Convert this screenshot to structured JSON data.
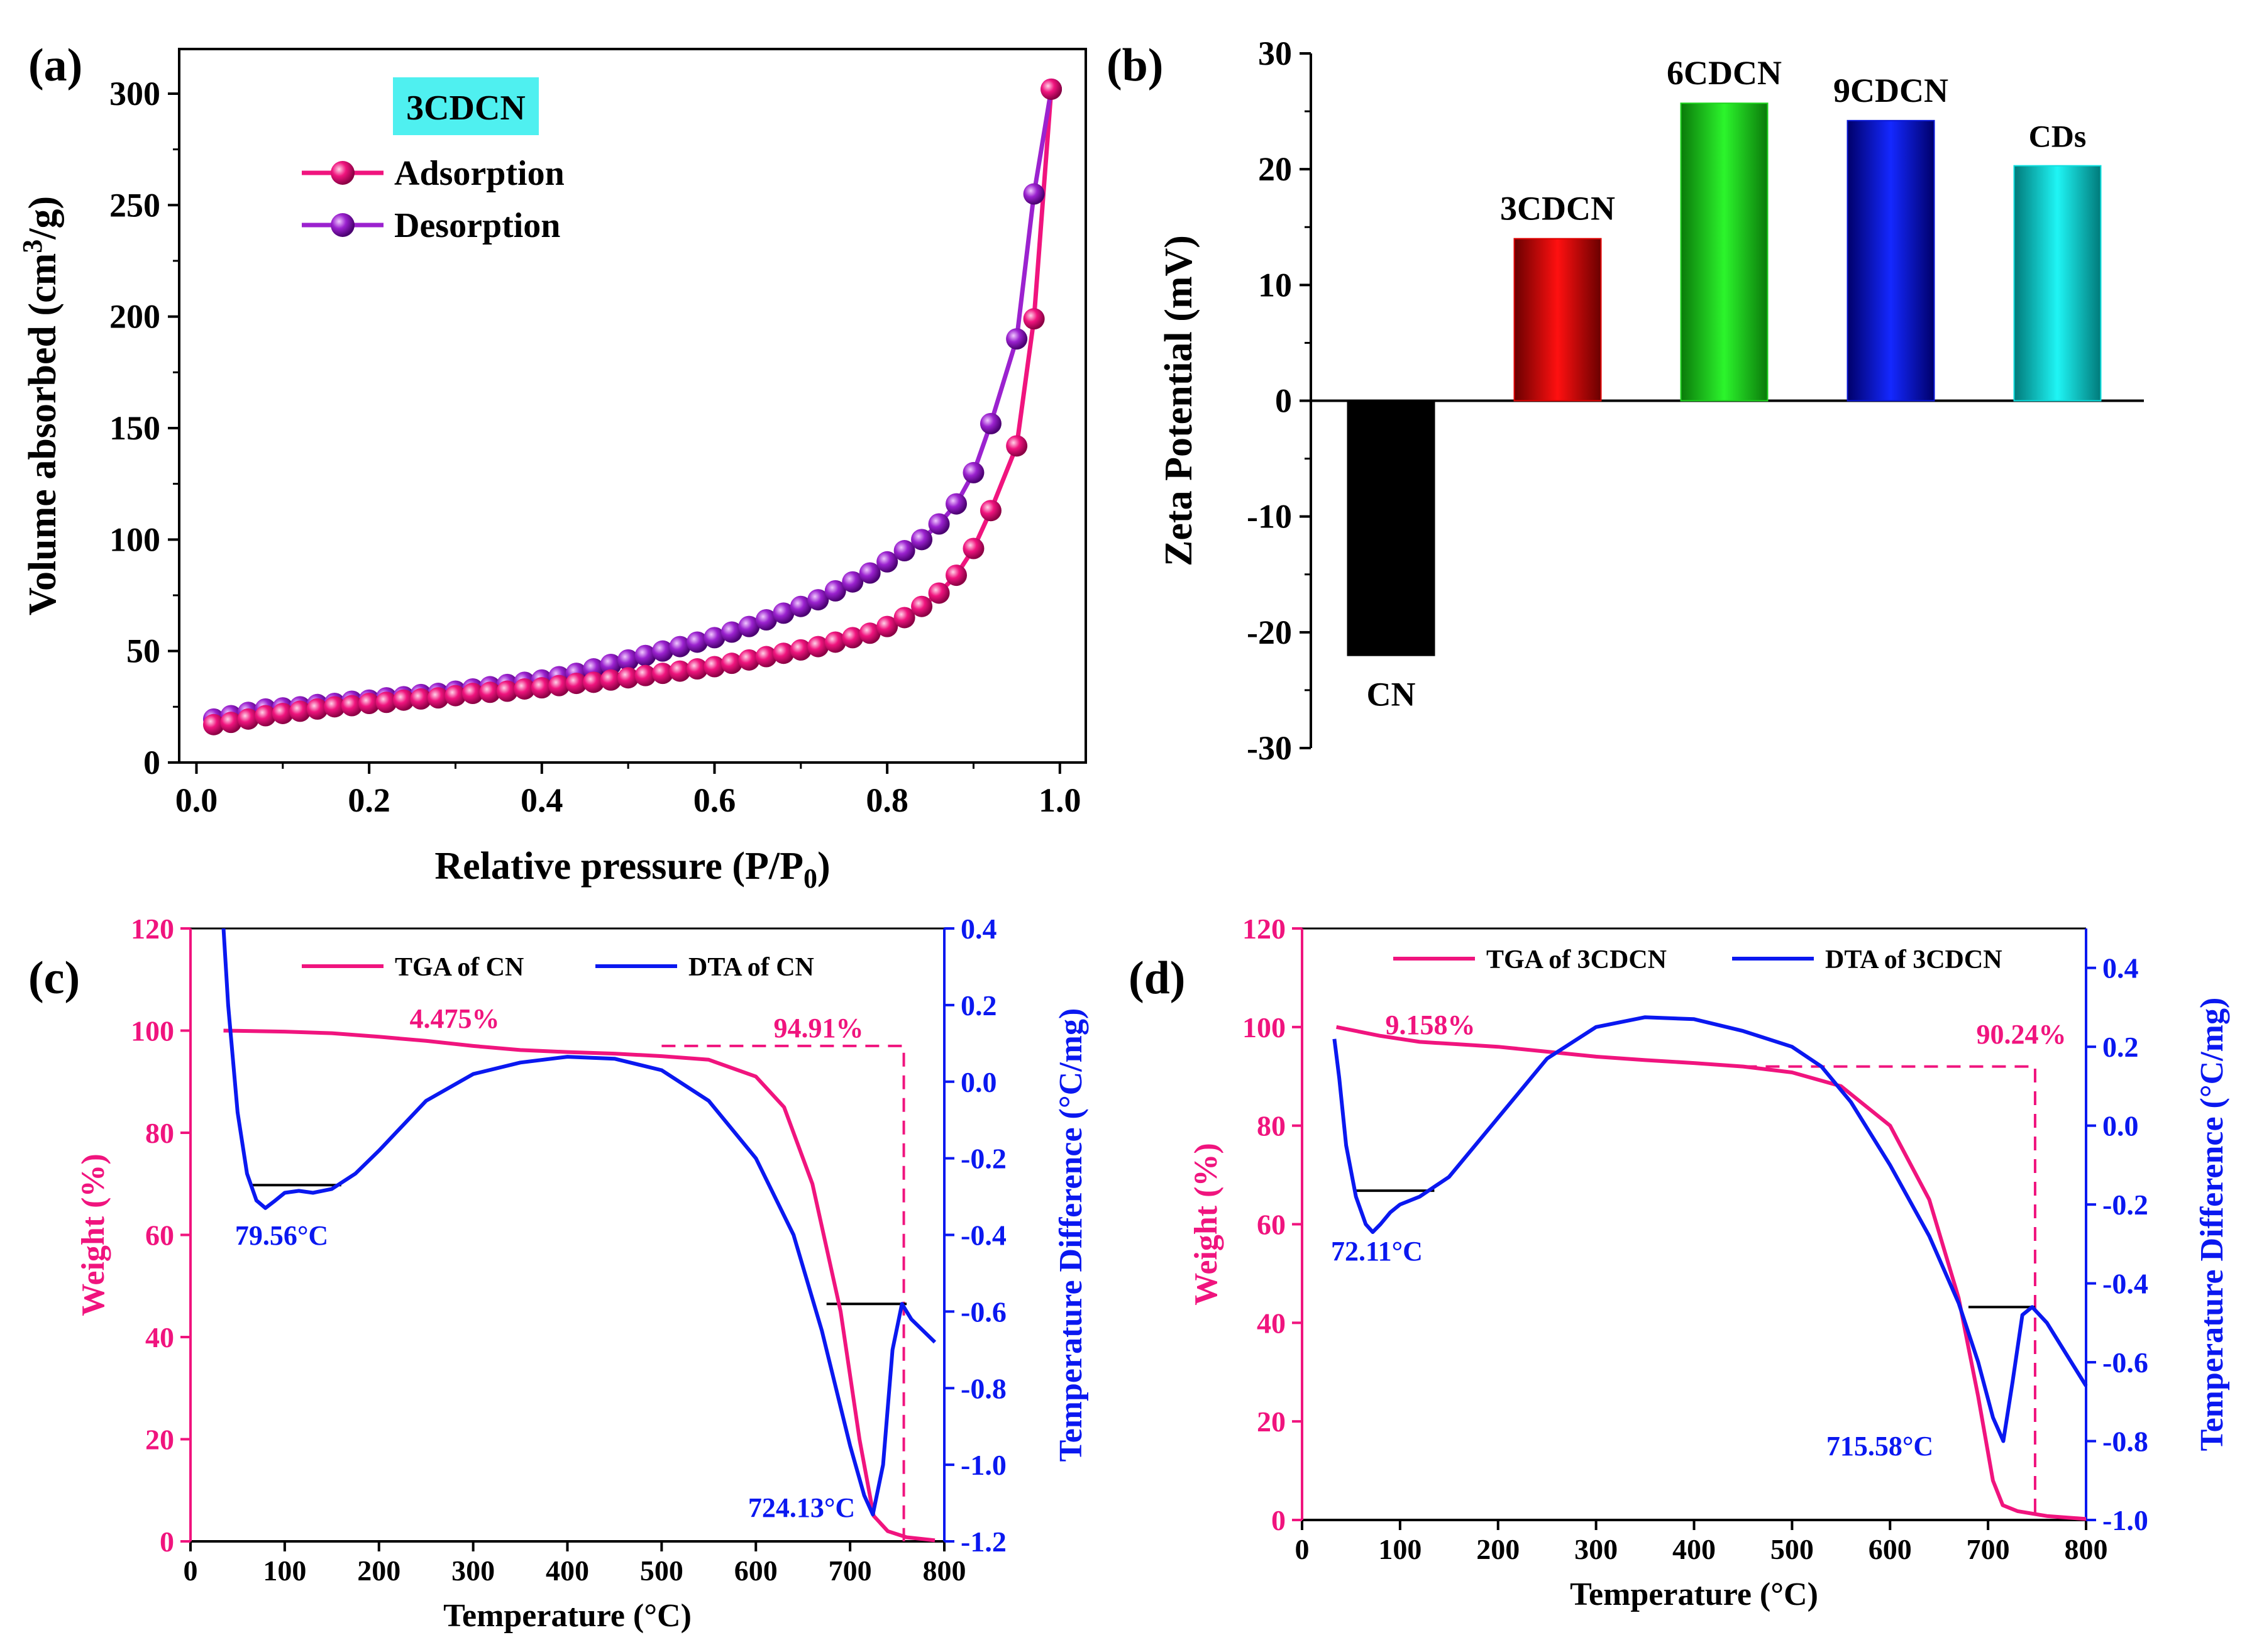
{
  "chart_data": [
    {
      "panel": "(a)",
      "type": "line",
      "title": "",
      "label_box": "3CDCN",
      "xlabel": "Relative pressure (P/P",
      "xlabel_sub": "0",
      "xlabel_tail": ")",
      "ylabel": "Volume absorbed (cm",
      "ylabel_sup": "3",
      "ylabel_tail": "/g)",
      "xlim": [
        -0.02,
        1.03
      ],
      "ylim": [
        0,
        320
      ],
      "xticks": [
        "0.0",
        "0.2",
        "0.4",
        "0.6",
        "0.8",
        "1.0"
      ],
      "yticks": [
        "0",
        "50",
        "100",
        "150",
        "200",
        "250",
        "300"
      ],
      "legend": "top-left",
      "series": [
        {
          "name": "Adsorption",
          "color": "#f0147e",
          "x": [
            0.02,
            0.04,
            0.06,
            0.08,
            0.1,
            0.12,
            0.14,
            0.16,
            0.18,
            0.2,
            0.22,
            0.24,
            0.26,
            0.28,
            0.3,
            0.32,
            0.34,
            0.36,
            0.38,
            0.4,
            0.42,
            0.44,
            0.46,
            0.48,
            0.5,
            0.52,
            0.54,
            0.56,
            0.58,
            0.6,
            0.62,
            0.64,
            0.66,
            0.68,
            0.7,
            0.72,
            0.74,
            0.76,
            0.78,
            0.8,
            0.82,
            0.84,
            0.86,
            0.88,
            0.9,
            0.92,
            0.95,
            0.97,
            0.99
          ],
          "y": [
            17,
            18,
            19.5,
            21,
            22,
            23,
            24,
            25,
            25.5,
            26.5,
            27,
            28,
            28.5,
            29,
            30,
            31,
            31.5,
            32,
            33,
            33.5,
            34.5,
            35.5,
            36,
            37,
            38,
            39,
            40,
            41,
            42,
            43,
            44.5,
            46,
            47.5,
            49,
            50.5,
            52,
            54,
            56,
            58,
            61,
            65,
            70,
            76,
            84,
            96,
            113,
            142,
            199,
            302
          ]
        },
        {
          "name": "Desorption",
          "color": "#9b22cf",
          "x": [
            0.02,
            0.04,
            0.06,
            0.08,
            0.1,
            0.12,
            0.14,
            0.16,
            0.18,
            0.2,
            0.22,
            0.24,
            0.26,
            0.28,
            0.3,
            0.32,
            0.34,
            0.36,
            0.38,
            0.4,
            0.42,
            0.44,
            0.46,
            0.48,
            0.5,
            0.52,
            0.54,
            0.56,
            0.58,
            0.6,
            0.62,
            0.64,
            0.66,
            0.68,
            0.7,
            0.72,
            0.74,
            0.76,
            0.78,
            0.8,
            0.82,
            0.84,
            0.86,
            0.88,
            0.9,
            0.92,
            0.95,
            0.97,
            0.99
          ],
          "y": [
            19.5,
            21,
            22.5,
            24,
            24.5,
            25,
            26,
            26.5,
            27.5,
            28,
            29,
            29.5,
            30.5,
            31,
            32,
            33,
            34,
            35,
            36,
            37,
            38.5,
            40,
            42,
            44,
            46,
            48,
            50,
            52,
            54,
            56,
            58.5,
            61,
            64,
            67,
            70,
            73,
            77,
            81,
            85,
            90,
            95,
            100,
            107,
            116,
            130,
            152,
            190,
            255,
            302
          ]
        }
      ]
    },
    {
      "panel": "(b)",
      "type": "bar",
      "title": "",
      "ylabel": "Zeta Potential (mV)",
      "xlabel": "",
      "ylim": [
        -30,
        30
      ],
      "yticks": [
        "-30",
        "-20",
        "-10",
        "0",
        "10",
        "20",
        "30"
      ],
      "categories": [
        "CN",
        "3CDCN",
        "6CDCN",
        "9CDCN",
        "CDs"
      ],
      "values": [
        -22,
        14,
        25.7,
        24.2,
        20.3
      ],
      "colors": [
        "#000000",
        "#e00000",
        "#1fd61f",
        "#0a18d8",
        "#0fe0e0"
      ],
      "grid": false
    },
    {
      "panel": "(c)",
      "type": "line",
      "title": "",
      "xlabel": "Temperature (°C)",
      "ylabel_left": "Weight (%)",
      "ylabel_right": "Temperature Difference (°C/mg)",
      "xlim": [
        0,
        800
      ],
      "ylim_left": [
        0,
        120
      ],
      "ylim_right": [
        -1.2,
        0.4
      ],
      "xticks": [
        "0",
        "100",
        "200",
        "300",
        "400",
        "500",
        "600",
        "700",
        "800"
      ],
      "yticks_left": [
        "0",
        "20",
        "40",
        "60",
        "80",
        "100",
        "120"
      ],
      "yticks_right": [
        "-1.2",
        "-1.0",
        "-0.8",
        "-0.6",
        "-0.4",
        "-0.2",
        "0.0",
        "0.2",
        "0.4"
      ],
      "legend": "top",
      "annotations": [
        "4.475%",
        "94.91%",
        "79.56°C",
        "724.13°C"
      ],
      "series": [
        {
          "name": "TGA of CN",
          "axis": "left",
          "color": "#f0147e",
          "x": [
            35,
            100,
            150,
            200,
            250,
            300,
            350,
            400,
            450,
            500,
            550,
            600,
            630,
            660,
            690,
            710,
            725,
            740,
            760,
            790
          ],
          "y": [
            100,
            99.8,
            99.5,
            98.8,
            98,
            97,
            96.2,
            95.8,
            95.5,
            95,
            94.3,
            91,
            85,
            70,
            45,
            20,
            5,
            2,
            0.8,
            0.2
          ]
        },
        {
          "name": "DTA of CN",
          "axis": "right",
          "color": "#0a18f0",
          "x": [
            35,
            40,
            50,
            60,
            70,
            79.56,
            90,
            100,
            115,
            130,
            150,
            175,
            200,
            250,
            300,
            350,
            400,
            450,
            500,
            550,
            600,
            640,
            670,
            700,
            715,
            724.13,
            735,
            745,
            755,
            765,
            790
          ],
          "y": [
            0.4,
            0.2,
            -0.08,
            -0.24,
            -0.31,
            -0.33,
            -0.31,
            -0.29,
            -0.285,
            -0.29,
            -0.28,
            -0.24,
            -0.18,
            -0.05,
            0.02,
            0.05,
            0.065,
            0.06,
            0.03,
            -0.05,
            -0.2,
            -0.4,
            -0.65,
            -0.95,
            -1.08,
            -1.13,
            -1.0,
            -0.7,
            -0.58,
            -0.62,
            -0.68
          ]
        }
      ]
    },
    {
      "panel": "(d)",
      "type": "line",
      "title": "",
      "xlabel": "Temperature (°C)",
      "ylabel_left": "Weight (%)",
      "ylabel_right": "Temperature Difference (°C/mg)",
      "xlim": [
        0,
        800
      ],
      "ylim_left": [
        0,
        120
      ],
      "ylim_right": [
        -1.0,
        0.5
      ],
      "xticks": [
        "0",
        "100",
        "200",
        "300",
        "400",
        "500",
        "600",
        "700",
        "800"
      ],
      "yticks_left": [
        "0",
        "20",
        "40",
        "60",
        "80",
        "100",
        "120"
      ],
      "yticks_right": [
        "-1.0",
        "-0.8",
        "-0.6",
        "-0.4",
        "-0.2",
        "0.0",
        "0.2",
        "0.4"
      ],
      "legend": "top",
      "annotations": [
        "9.158%",
        "90.24%",
        "72.11°C",
        "715.58°C"
      ],
      "series": [
        {
          "name": "TGA of 3CDCN",
          "axis": "left",
          "color": "#f0147e",
          "x": [
            35,
            80,
            120,
            160,
            200,
            250,
            300,
            350,
            400,
            450,
            500,
            550,
            600,
            640,
            670,
            690,
            705,
            715,
            730,
            760,
            800
          ],
          "y": [
            100,
            98.2,
            97,
            96.5,
            96,
            95,
            94,
            93.3,
            92.7,
            92,
            90.8,
            88,
            80,
            65,
            45,
            25,
            8,
            3,
            1.8,
            0.8,
            0.2
          ]
        },
        {
          "name": "DTA of 3CDCN",
          "axis": "right",
          "color": "#0a18f0",
          "x": [
            33,
            38,
            45,
            55,
            65,
            72.11,
            80,
            90,
            100,
            120,
            150,
            200,
            250,
            300,
            350,
            400,
            450,
            500,
            530,
            560,
            600,
            640,
            670,
            690,
            705,
            715.58,
            725,
            735,
            745,
            760,
            780,
            800
          ],
          "y": [
            0.22,
            0.12,
            -0.05,
            -0.18,
            -0.25,
            -0.27,
            -0.25,
            -0.22,
            -0.2,
            -0.18,
            -0.13,
            0.02,
            0.17,
            0.25,
            0.275,
            0.27,
            0.24,
            0.2,
            0.15,
            0.06,
            -0.1,
            -0.28,
            -0.45,
            -0.6,
            -0.74,
            -0.8,
            -0.65,
            -0.48,
            -0.46,
            -0.5,
            -0.58,
            -0.66
          ]
        }
      ]
    }
  ],
  "panel_labels": [
    "(a)",
    "(b)",
    "(c)",
    "(d)"
  ]
}
